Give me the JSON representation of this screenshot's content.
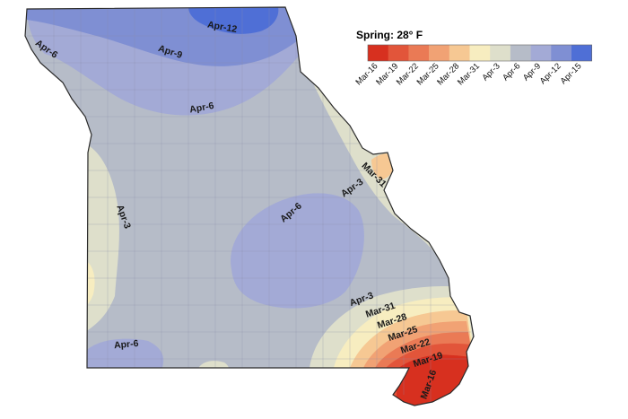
{
  "legend": {
    "title": "Spring: 28° F",
    "classes": [
      {
        "label": "Mar-16",
        "color": "#d7301f"
      },
      {
        "label": "Mar-19",
        "color": "#e2553a"
      },
      {
        "label": "Mar-22",
        "color": "#ea7a55"
      },
      {
        "label": "Mar-25",
        "color": "#f1a274"
      },
      {
        "label": "Mar-28",
        "color": "#f6c893"
      },
      {
        "label": "Mar-31",
        "color": "#f7edc0"
      },
      {
        "label": "Apr-3",
        "color": "#dedfcb"
      },
      {
        "label": "Apr-6",
        "color": "#b6bcc8"
      },
      {
        "label": "Apr-9",
        "color": "#a3aad6"
      },
      {
        "label": "Apr-12",
        "color": "#7f8fd3"
      },
      {
        "label": "Apr-15",
        "color": "#4f6fd6"
      }
    ]
  },
  "contour_labels": [
    {
      "text": "Apr-12"
    },
    {
      "text": "Apr-9"
    },
    {
      "text": "Apr-6"
    },
    {
      "text": "Apr-6"
    },
    {
      "text": "Mar-31"
    },
    {
      "text": "Apr-3"
    },
    {
      "text": "Apr-3"
    },
    {
      "text": "Apr-6"
    },
    {
      "text": "Apr-3"
    },
    {
      "text": "Mar-31"
    },
    {
      "text": "Mar-28"
    },
    {
      "text": "Mar-25"
    },
    {
      "text": "Mar-22"
    },
    {
      "text": "Mar-19"
    },
    {
      "text": "Mar-16"
    },
    {
      "text": "Apr-6"
    }
  ]
}
